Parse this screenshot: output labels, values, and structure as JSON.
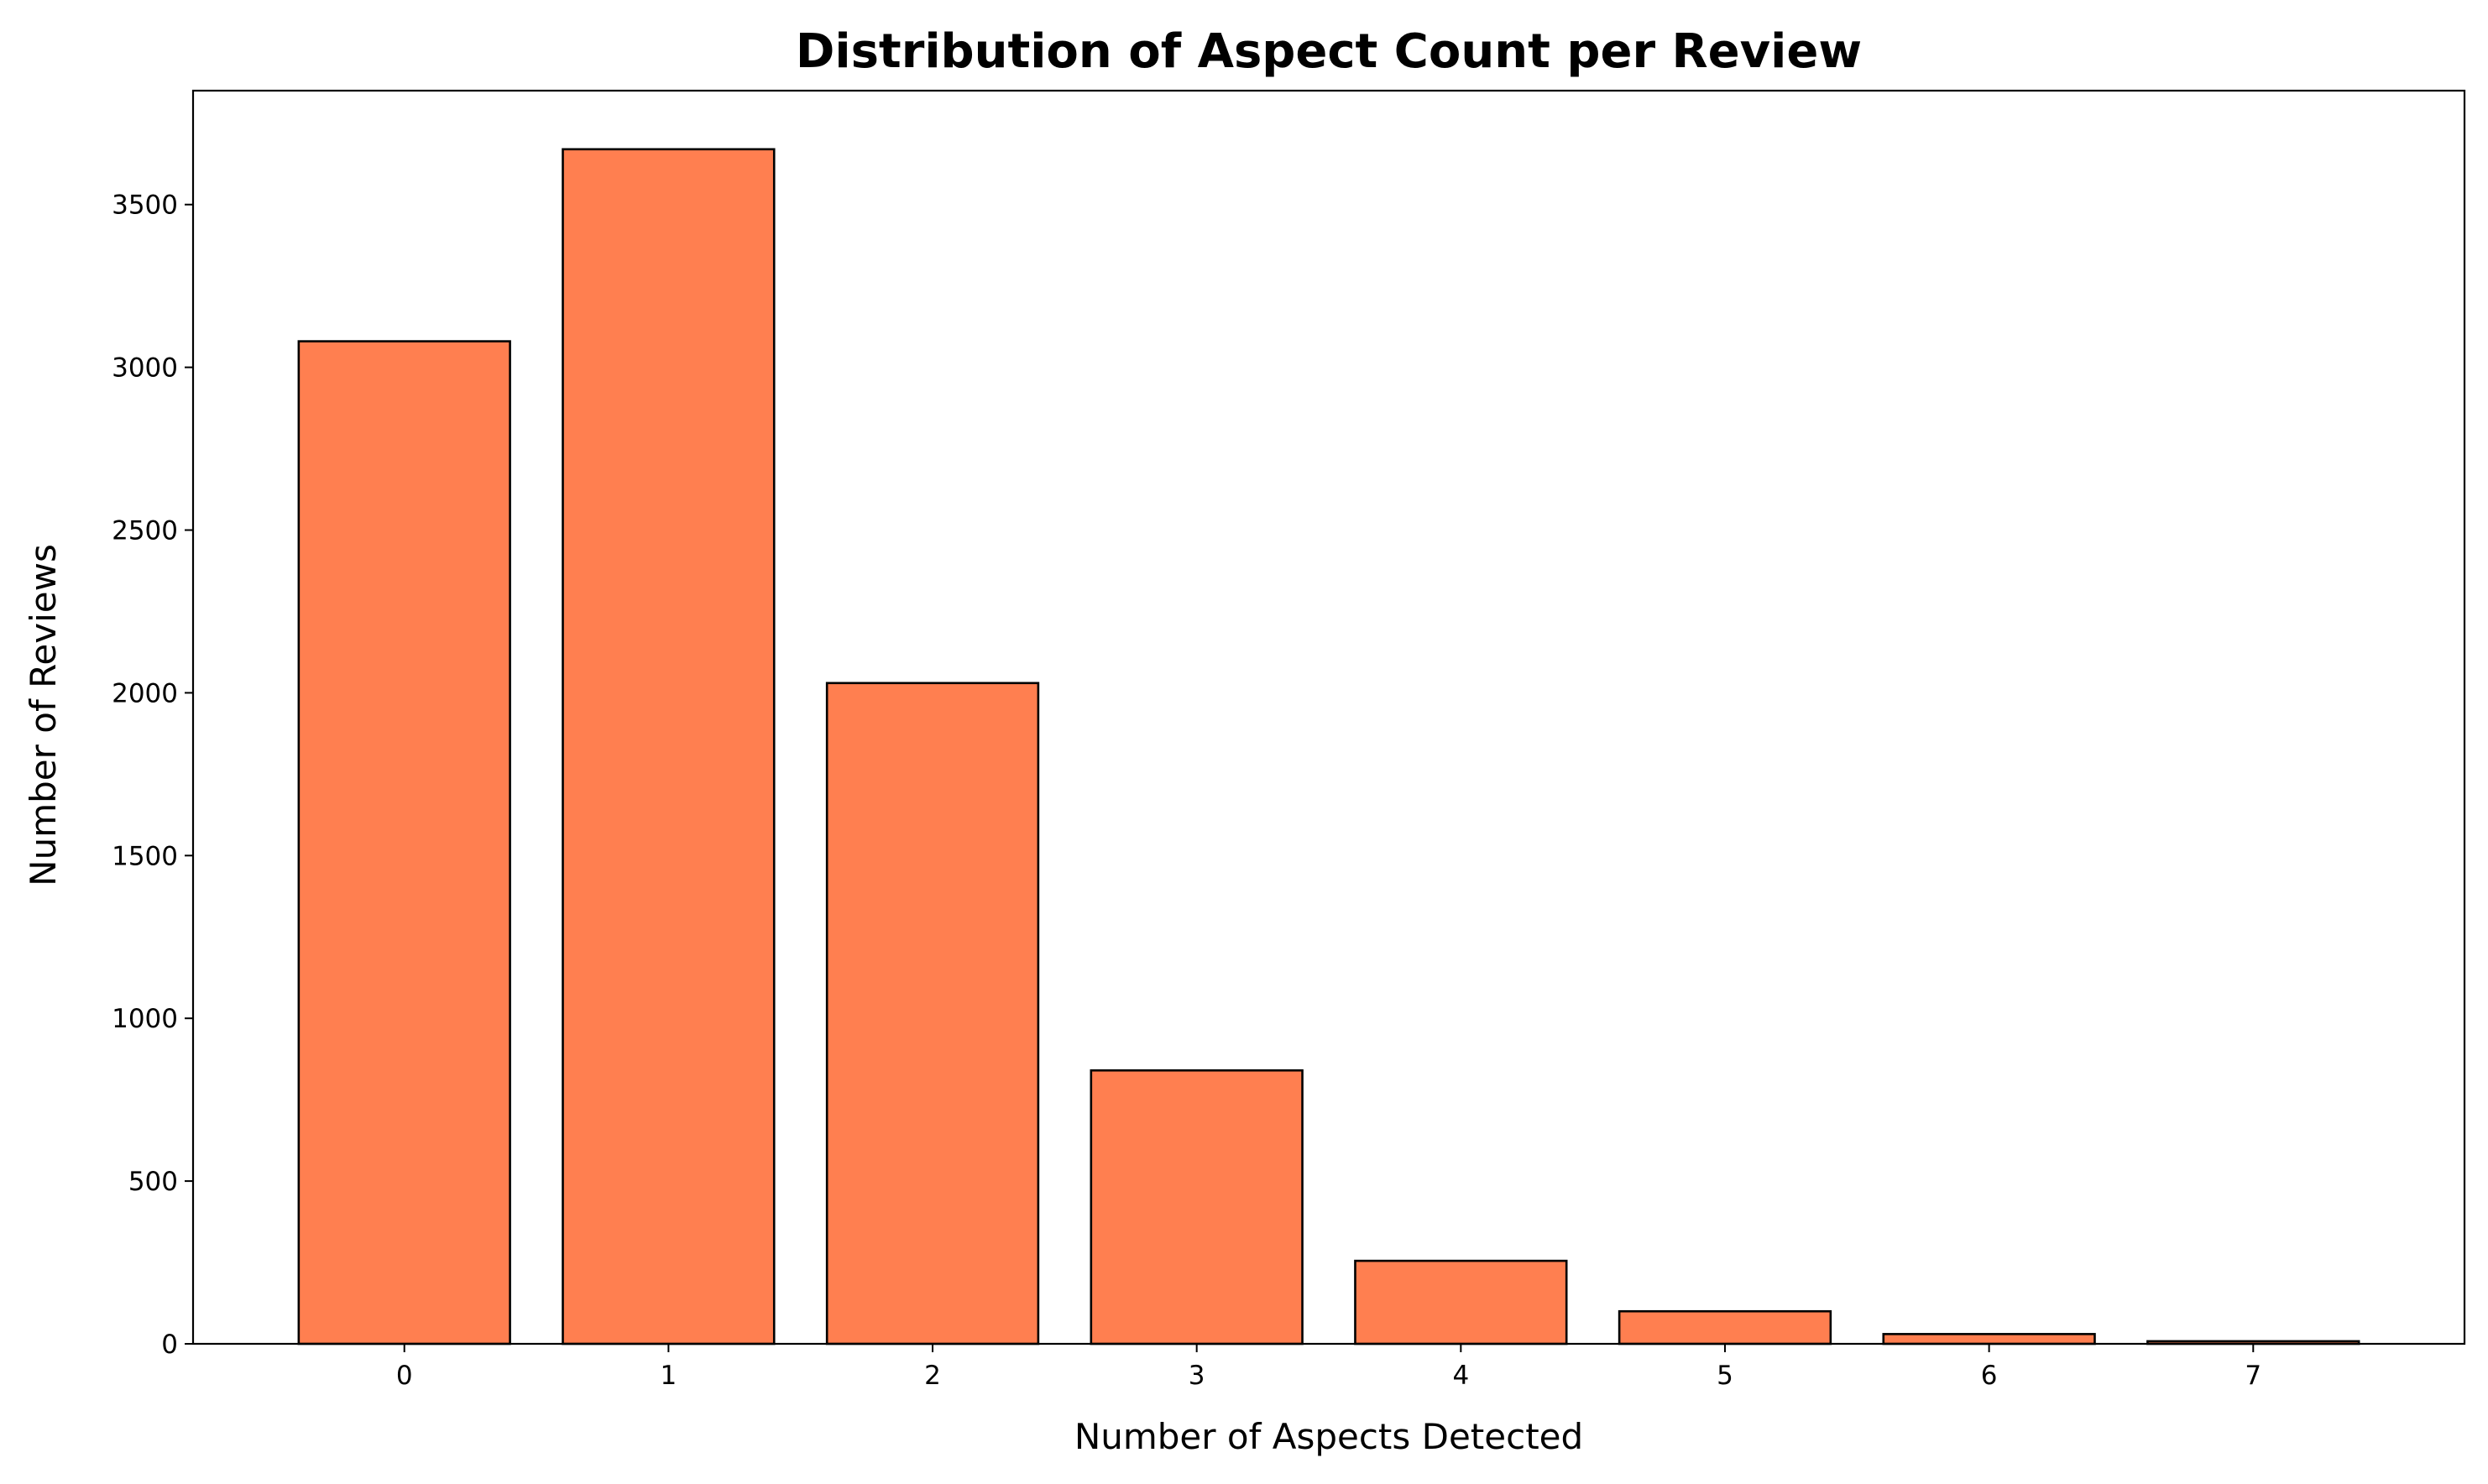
{
  "chart_data": {
    "type": "bar",
    "title": "Distribution of Aspect Count per Review",
    "xlabel": "Number of Aspects Detected",
    "ylabel": "Number of Reviews",
    "categories": [
      "0",
      "1",
      "2",
      "3",
      "4",
      "5",
      "6",
      "7"
    ],
    "values": [
      3080,
      3670,
      2030,
      840,
      255,
      100,
      30,
      8
    ],
    "ylim": [
      0,
      3850
    ],
    "yticks": [
      0,
      500,
      1000,
      1500,
      2000,
      2500,
      3000,
      3500
    ],
    "bar_color": "#ff7f50",
    "edge_color": "#000000",
    "grid": false,
    "legend": false
  }
}
